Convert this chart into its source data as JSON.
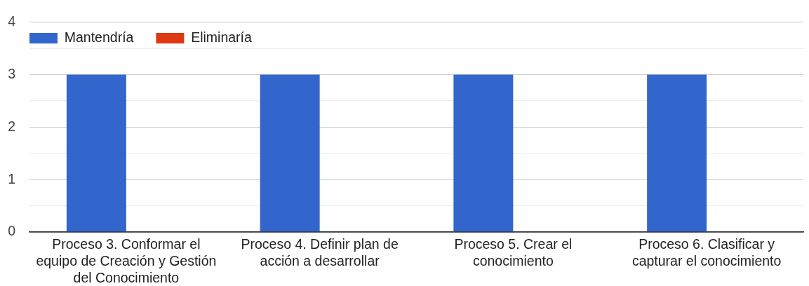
{
  "chart_data": {
    "type": "bar",
    "categories": [
      "Proceso 3. Conformar el equipo de Creación y Gestión del Conocimiento",
      "Proceso 4. Definir plan de acción a desarrollar",
      "Proceso 5. Crear el conocimiento",
      "Proceso 6. Clasificar y capturar el conocimiento"
    ],
    "series": [
      {
        "name": "Mantendría",
        "color": "#3366cc",
        "values": [
          3,
          3,
          3,
          3
        ]
      },
      {
        "name": "Eliminaría",
        "color": "#dc3912",
        "values": [
          0,
          0,
          0,
          0
        ]
      }
    ],
    "ylim": [
      0,
      4
    ],
    "yticks": [
      0,
      {
        "value": 0.5,
        "label": null
      },
      1,
      {
        "value": 1.5,
        "label": null
      },
      2,
      {
        "value": 2.5,
        "label": null
      },
      3,
      {
        "value": 3.5,
        "label": null
      },
      4
    ],
    "grid": "y",
    "legend": "top left"
  }
}
